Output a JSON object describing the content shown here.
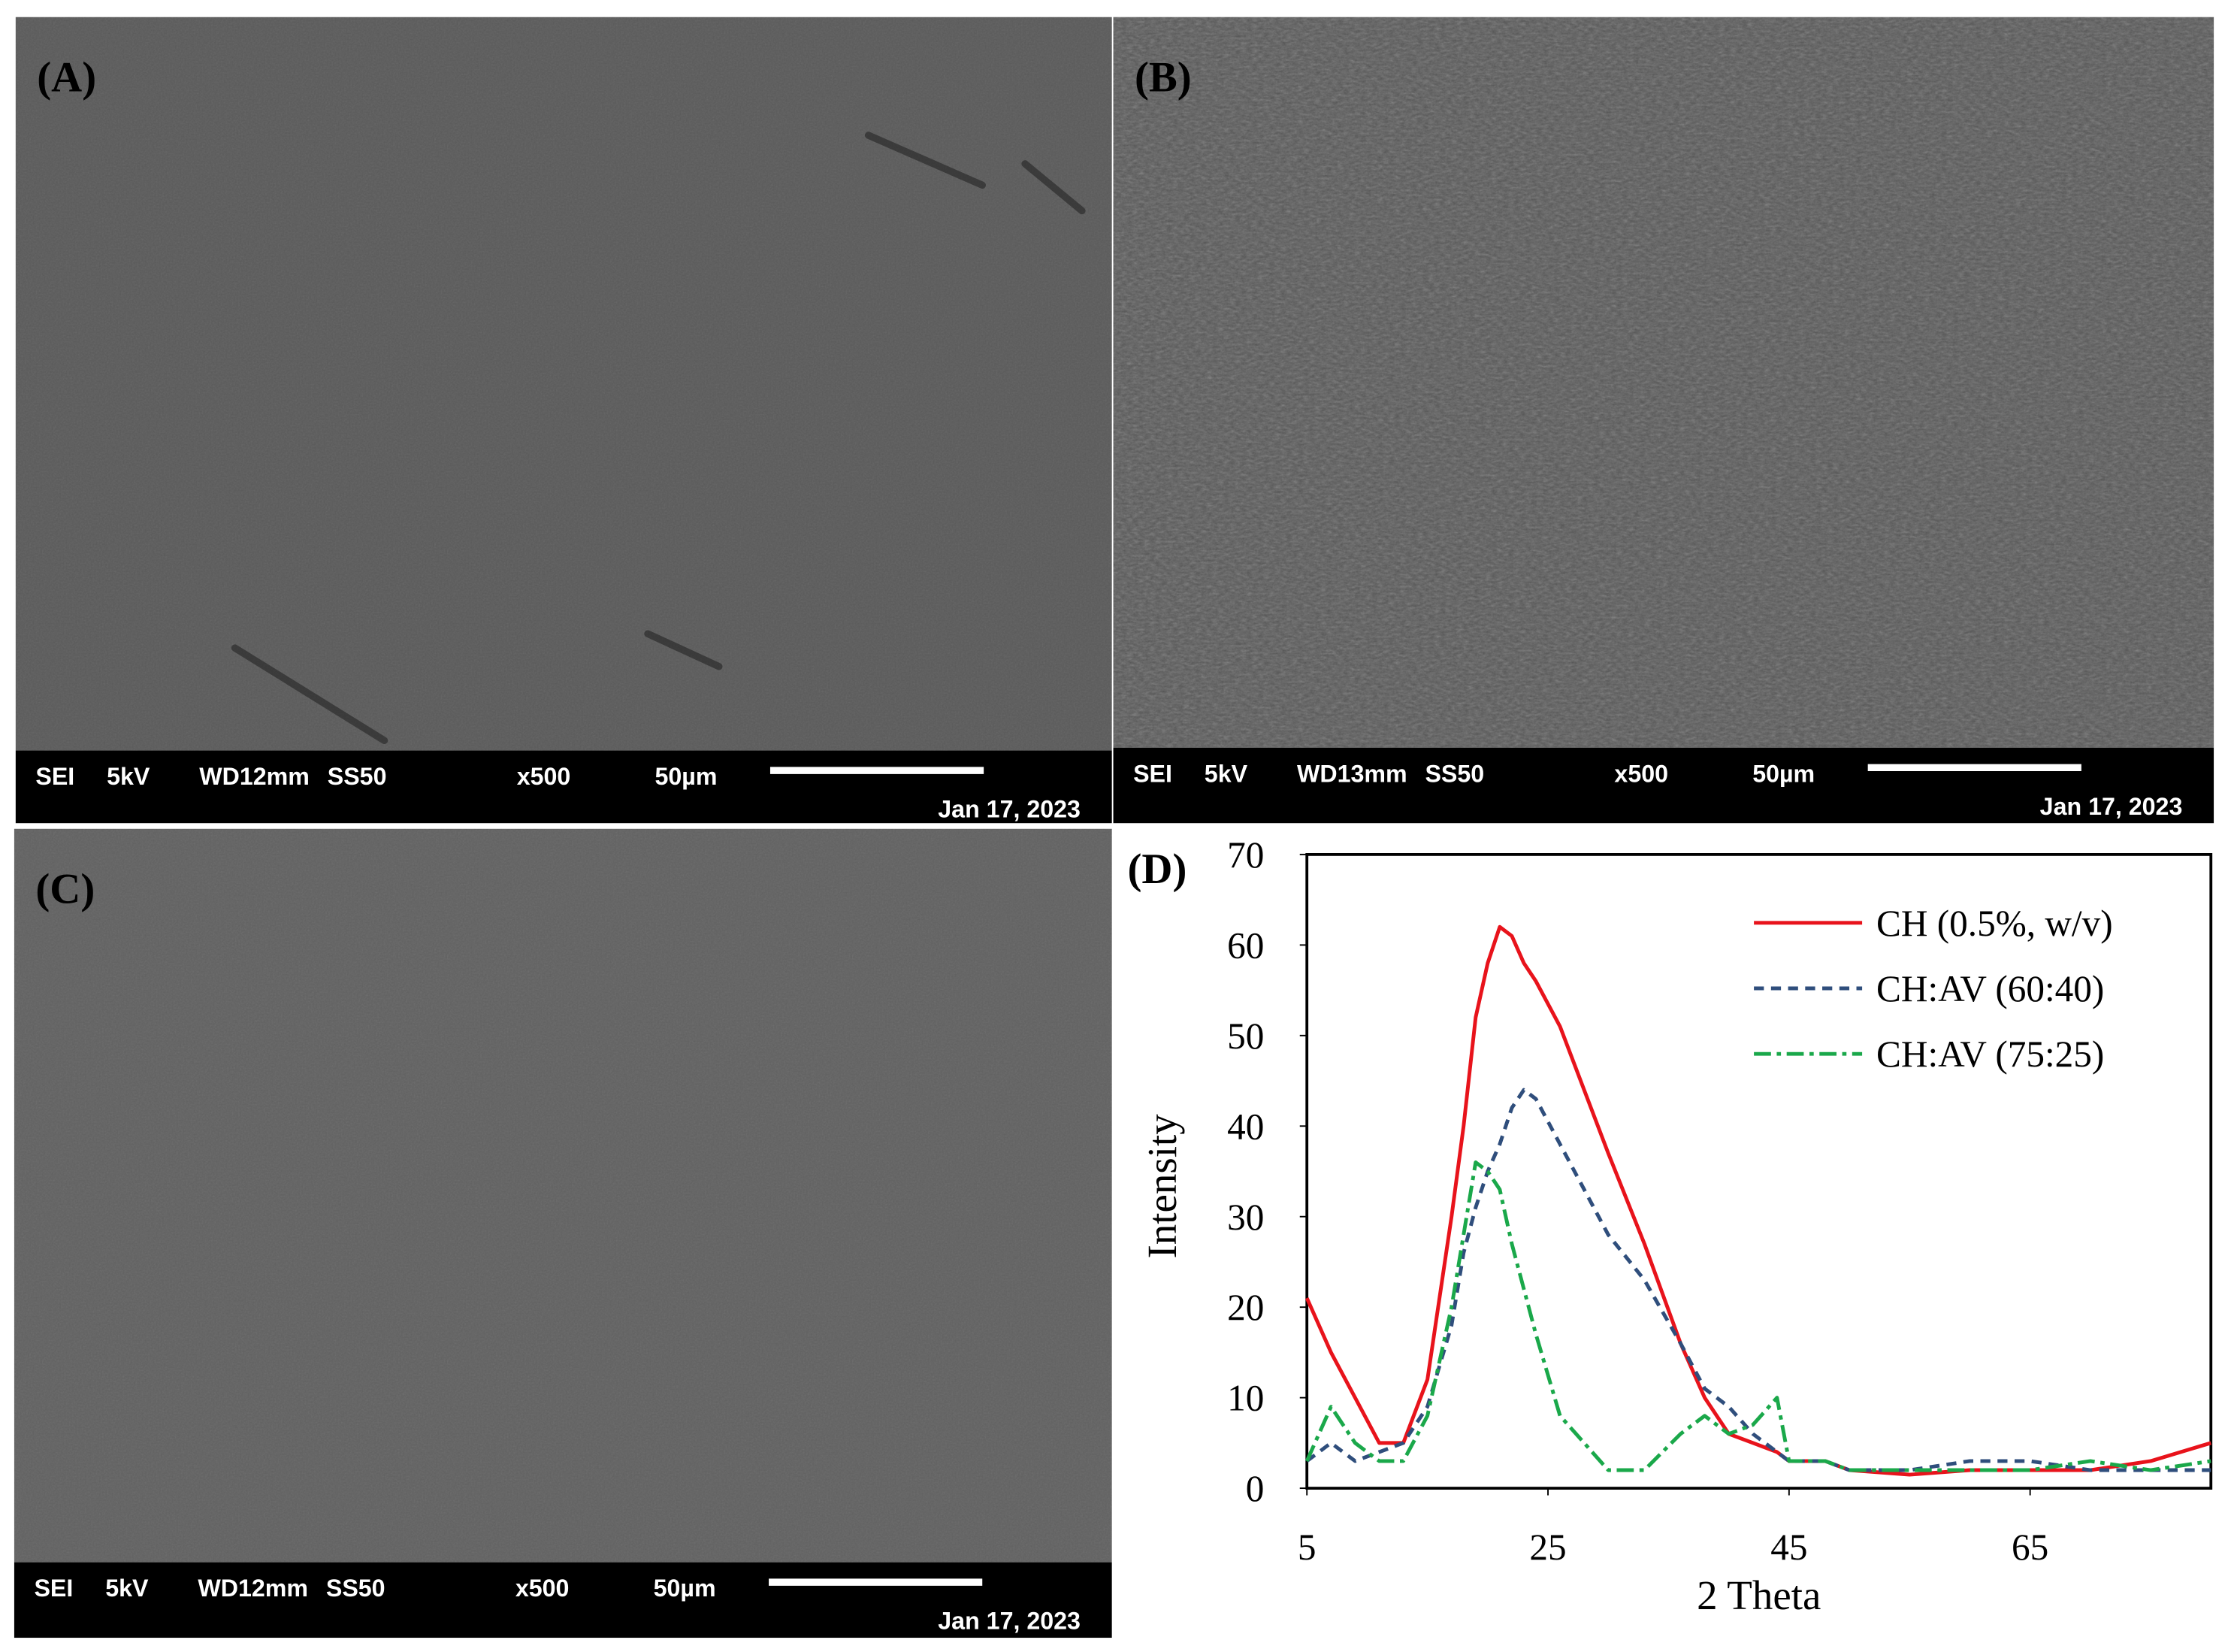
{
  "panels": [
    {
      "label": "(A)",
      "info": [
        "SEI",
        "5kV",
        "WD12mm",
        "SS50",
        "x500",
        "50µm"
      ],
      "date": "Jan 17, 2023"
    },
    {
      "label": "(B)",
      "info": [
        "SEI",
        "5kV",
        "WD13mm",
        "SS50",
        "x500",
        "50µm"
      ],
      "date": "Jan 17, 2023"
    },
    {
      "label": "(C)",
      "info": [
        "SEI",
        "5kV",
        "WD12mm",
        "SS50",
        "x500",
        "50µm"
      ],
      "date": "Jan 17, 2023"
    }
  ],
  "chart_data": {
    "type": "line",
    "annotations": [
      "(D)"
    ],
    "x_label": "2 Theta",
    "y_label": "Intensity",
    "x": [
      5,
      7,
      9,
      11,
      13,
      15,
      17,
      18,
      19,
      20,
      21,
      22,
      23,
      24,
      26,
      28,
      30,
      33,
      36,
      38,
      40,
      42,
      44,
      45,
      48,
      50,
      55,
      60,
      65,
      70,
      75,
      80
    ],
    "series": [
      {
        "name": "CH (0.5%, w/v)",
        "color": "#e8131b",
        "style": "solid",
        "values": [
          21,
          15,
          10,
          5,
          5,
          12,
          30,
          40,
          52,
          58,
          62,
          61,
          58,
          56,
          51,
          44,
          37,
          27,
          16,
          10,
          6,
          5,
          4,
          3,
          3,
          2,
          1.5,
          2,
          2,
          2,
          3,
          5
        ]
      },
      {
        "name": "CH:AV (60:40)",
        "color": "#2f4e7c",
        "style": "dashed",
        "values": [
          3,
          5,
          3,
          4,
          5,
          9,
          18,
          26,
          31,
          35,
          38,
          42,
          44,
          43,
          38,
          33,
          28,
          23,
          16,
          11,
          9,
          6,
          4,
          3,
          3,
          2,
          2,
          3,
          3,
          2,
          2,
          2
        ]
      },
      {
        "name": "CH:AV (75:25)",
        "color": "#1aa84a",
        "style": "dashdot",
        "values": [
          3,
          9,
          5,
          3,
          3,
          8,
          20,
          28,
          36,
          35,
          33,
          27,
          22,
          17,
          8,
          5,
          2,
          2,
          6,
          8,
          6,
          7,
          10,
          3,
          3,
          2,
          2,
          2,
          2,
          3,
          2,
          3
        ]
      }
    ],
    "xlim": [
      5,
      80
    ],
    "xticks": [
      5,
      25,
      45,
      65
    ],
    "ylim": [
      0,
      70
    ],
    "yticks": [
      0,
      10,
      20,
      30,
      40,
      50,
      60,
      70
    ],
    "grid": false,
    "legend": "top-right"
  }
}
